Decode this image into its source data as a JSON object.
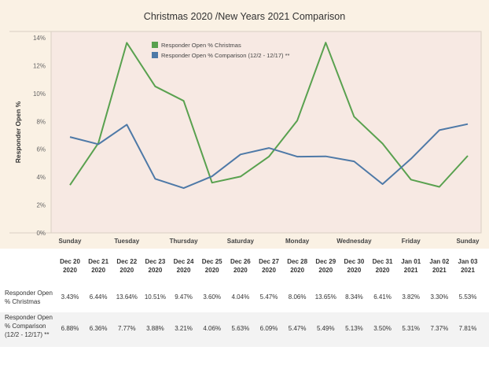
{
  "chart_data": {
    "type": "line",
    "title": "Christmas 2020 /New Years 2021 Comparison",
    "ylabel": "Responder Open %",
    "ylim": [
      0,
      14
    ],
    "yticks": [
      "0%",
      "2%",
      "4%",
      "6%",
      "8%",
      "10%",
      "12%",
      "14%"
    ],
    "weekday_labels": [
      "Sunday",
      "Tuesday",
      "Thursday",
      "Saturday",
      "Monday",
      "Wednesday",
      "Friday",
      "Sunday"
    ],
    "date_headers": [
      {
        "day": "Dec 20",
        "year": "2020"
      },
      {
        "day": "Dec 21",
        "year": "2020"
      },
      {
        "day": "Dec 22",
        "year": "2020"
      },
      {
        "day": "Dec 23",
        "year": "2020"
      },
      {
        "day": "Dec 24",
        "year": "2020"
      },
      {
        "day": "Dec 25",
        "year": "2020"
      },
      {
        "day": "Dec 26",
        "year": "2020"
      },
      {
        "day": "Dec 27",
        "year": "2020"
      },
      {
        "day": "Dec 28",
        "year": "2020"
      },
      {
        "day": "Dec 29",
        "year": "2020"
      },
      {
        "day": "Dec 30",
        "year": "2020"
      },
      {
        "day": "Dec 31",
        "year": "2020"
      },
      {
        "day": "Jan 01",
        "year": "2021"
      },
      {
        "day": "Jan 02",
        "year": "2021"
      },
      {
        "day": "Jan 03",
        "year": "2021"
      }
    ],
    "series": [
      {
        "name": "Responder Open % Christmas",
        "table_label": [
          "Responder Open",
          "% Christmas"
        ],
        "color": "#59a14f",
        "values": [
          3.43,
          6.44,
          13.64,
          10.51,
          9.47,
          3.6,
          4.04,
          5.47,
          8.06,
          13.65,
          8.34,
          6.41,
          3.82,
          3.3,
          5.53
        ],
        "labels": [
          "3.43%",
          "6.44%",
          "13.64%",
          "10.51%",
          "9.47%",
          "3.60%",
          "4.04%",
          "5.47%",
          "8.06%",
          "13.65%",
          "8.34%",
          "6.41%",
          "3.82%",
          "3.30%",
          "5.53%"
        ]
      },
      {
        "name": "Responder Open % Comparison (12/2 - 12/17) **",
        "table_label": [
          "Responder Open",
          "% Comparison",
          "(12/2 - 12/17) **"
        ],
        "color": "#4e79a7",
        "values": [
          6.88,
          6.36,
          7.77,
          3.88,
          3.21,
          4.06,
          5.63,
          6.09,
          5.47,
          5.49,
          5.13,
          3.5,
          5.31,
          7.37,
          7.81
        ],
        "labels": [
          "6.88%",
          "6.36%",
          "7.77%",
          "3.88%",
          "3.21%",
          "4.06%",
          "5.63%",
          "6.09%",
          "5.47%",
          "5.49%",
          "5.13%",
          "3.50%",
          "5.31%",
          "7.37%",
          "7.81%"
        ]
      }
    ],
    "legend_position": "top-center",
    "grid": false
  }
}
